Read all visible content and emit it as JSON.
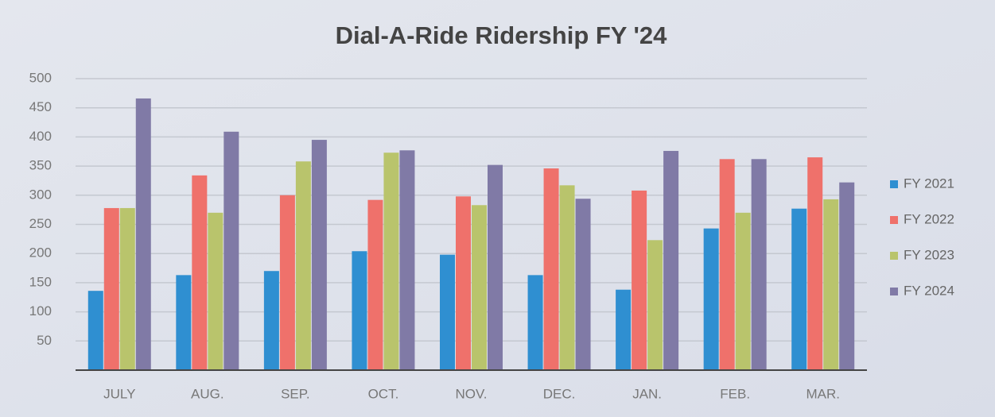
{
  "chart_data": {
    "type": "bar",
    "title": "Dial-A-Ride Ridership FY '24",
    "categories": [
      "JULY",
      "AUG.",
      "SEP.",
      "OCT.",
      "NOV.",
      "DEC.",
      "JAN.",
      "FEB.",
      "MAR."
    ],
    "series": [
      {
        "name": "FY 2021",
        "color": "#2f8fd1",
        "values": [
          136,
          163,
          170,
          204,
          198,
          163,
          138,
          243,
          277
        ]
      },
      {
        "name": "FY 2022",
        "color": "#ef716b",
        "values": [
          278,
          334,
          300,
          292,
          298,
          346,
          308,
          362,
          365
        ]
      },
      {
        "name": "FY 2023",
        "color": "#b9c46c",
        "values": [
          278,
          270,
          358,
          373,
          283,
          317,
          223,
          270,
          293
        ]
      },
      {
        "name": "FY 2024",
        "color": "#807aa6",
        "values": [
          466,
          409,
          395,
          377,
          352,
          294,
          376,
          362,
          322
        ]
      }
    ],
    "ylim": [
      0,
      500
    ],
    "yticks": [
      50,
      100,
      150,
      200,
      250,
      300,
      350,
      400,
      450,
      500
    ],
    "grid": true,
    "legend": "right"
  }
}
